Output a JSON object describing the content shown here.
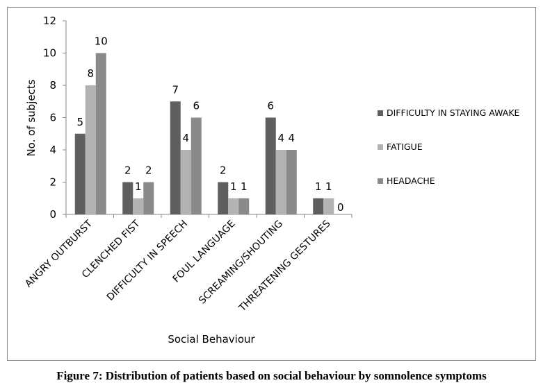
{
  "chart_data": {
    "type": "bar",
    "categories": [
      "ANGRY OUTBURST",
      "CLENCHED FIST",
      "DIFFICULTY IN SPEECH",
      "FOUL LANGUAGE",
      "SCREAMING/SHOUTING",
      "THREATENING GESTURES"
    ],
    "series": [
      {
        "name": "DIFFICULTY IN STAYING AWAKE",
        "color": "#5f5f5f",
        "values": [
          5,
          2,
          7,
          2,
          6,
          1
        ]
      },
      {
        "name": "FATIGUE",
        "color": "#b3b3b3",
        "values": [
          8,
          1,
          4,
          1,
          4,
          1
        ]
      },
      {
        "name": "HEADACHE",
        "color": "#8a8a8a",
        "values": [
          10,
          2,
          6,
          1,
          4,
          0
        ]
      }
    ],
    "xlabel": "Social Behaviour",
    "ylabel": "No. of subjects",
    "ylim": [
      0,
      12
    ],
    "yticks": [
      0,
      2,
      4,
      6,
      8,
      10,
      12
    ],
    "grid": false,
    "legend_position": "right"
  },
  "caption": "Figure 7: Distribution of patients based on social behaviour by somnolence symptoms"
}
